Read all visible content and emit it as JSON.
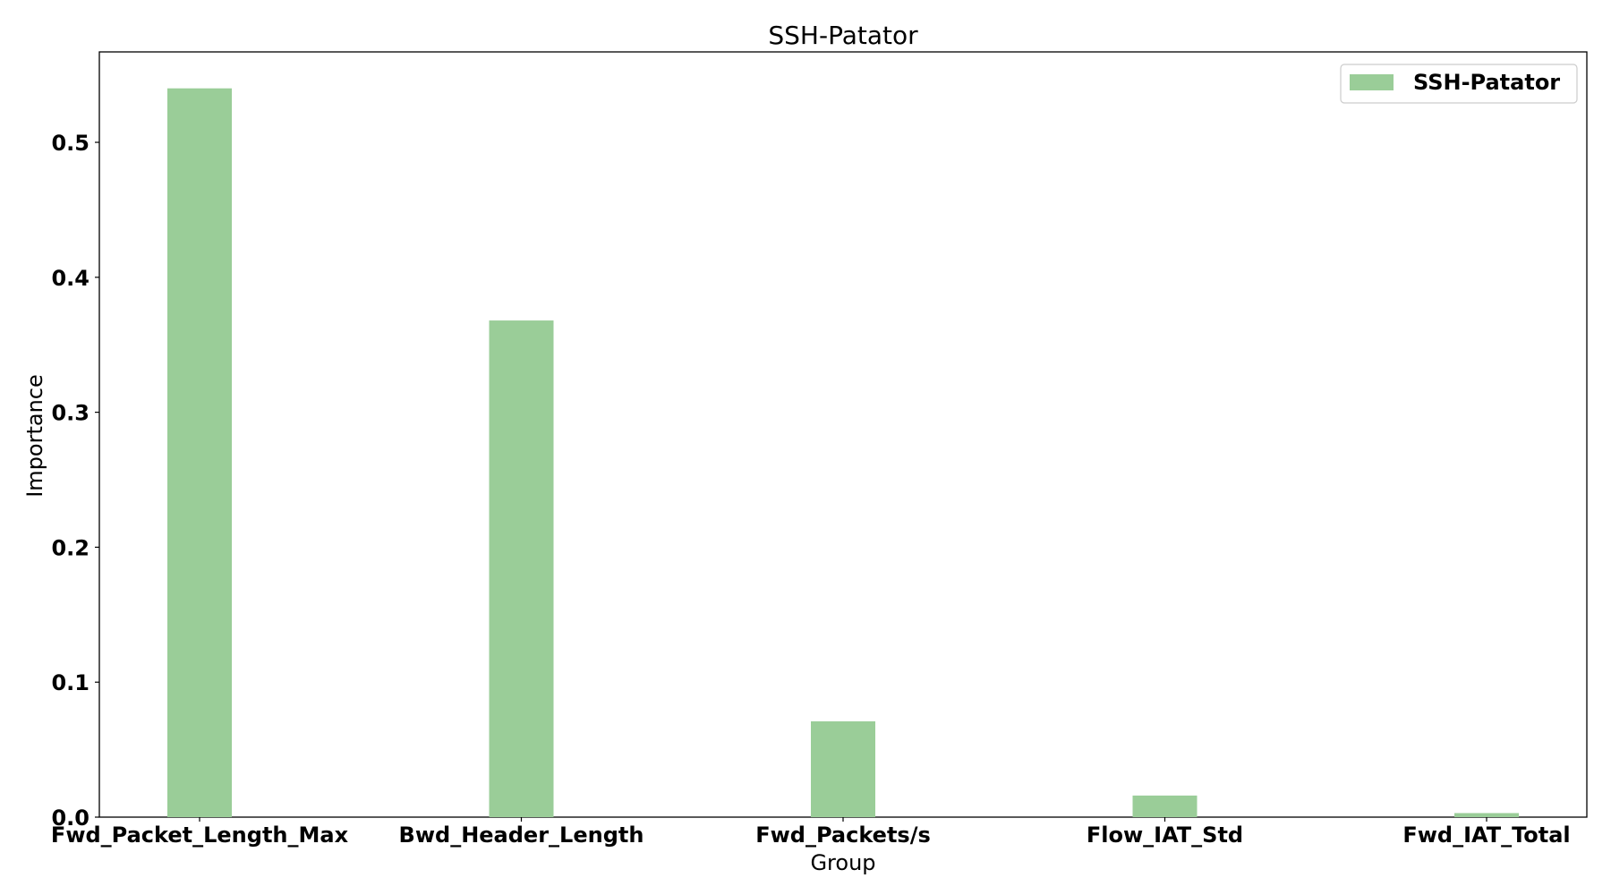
{
  "chart_data": {
    "type": "bar",
    "title": "SSH-Patator",
    "xlabel": "Group",
    "ylabel": "Importance",
    "categories": [
      "Fwd_Packet_Length_Max",
      "Bwd_Header_Length",
      "Fwd_Packets/s",
      "Flow_IAT_Std",
      "Fwd_IAT_Total"
    ],
    "series": [
      {
        "name": "SSH-Patator",
        "color": "#9ACD98",
        "values": [
          0.54,
          0.368,
          0.071,
          0.016,
          0.003
        ]
      }
    ],
    "ylim": [
      0,
      0.567
    ],
    "yticks": [
      0.0,
      0.1,
      0.2,
      0.3,
      0.4,
      0.5
    ],
    "ytick_labels": [
      "0.0",
      "0.1",
      "0.2",
      "0.3",
      "0.4",
      "0.5"
    ],
    "grid": false,
    "legend_position": "top-right"
  }
}
